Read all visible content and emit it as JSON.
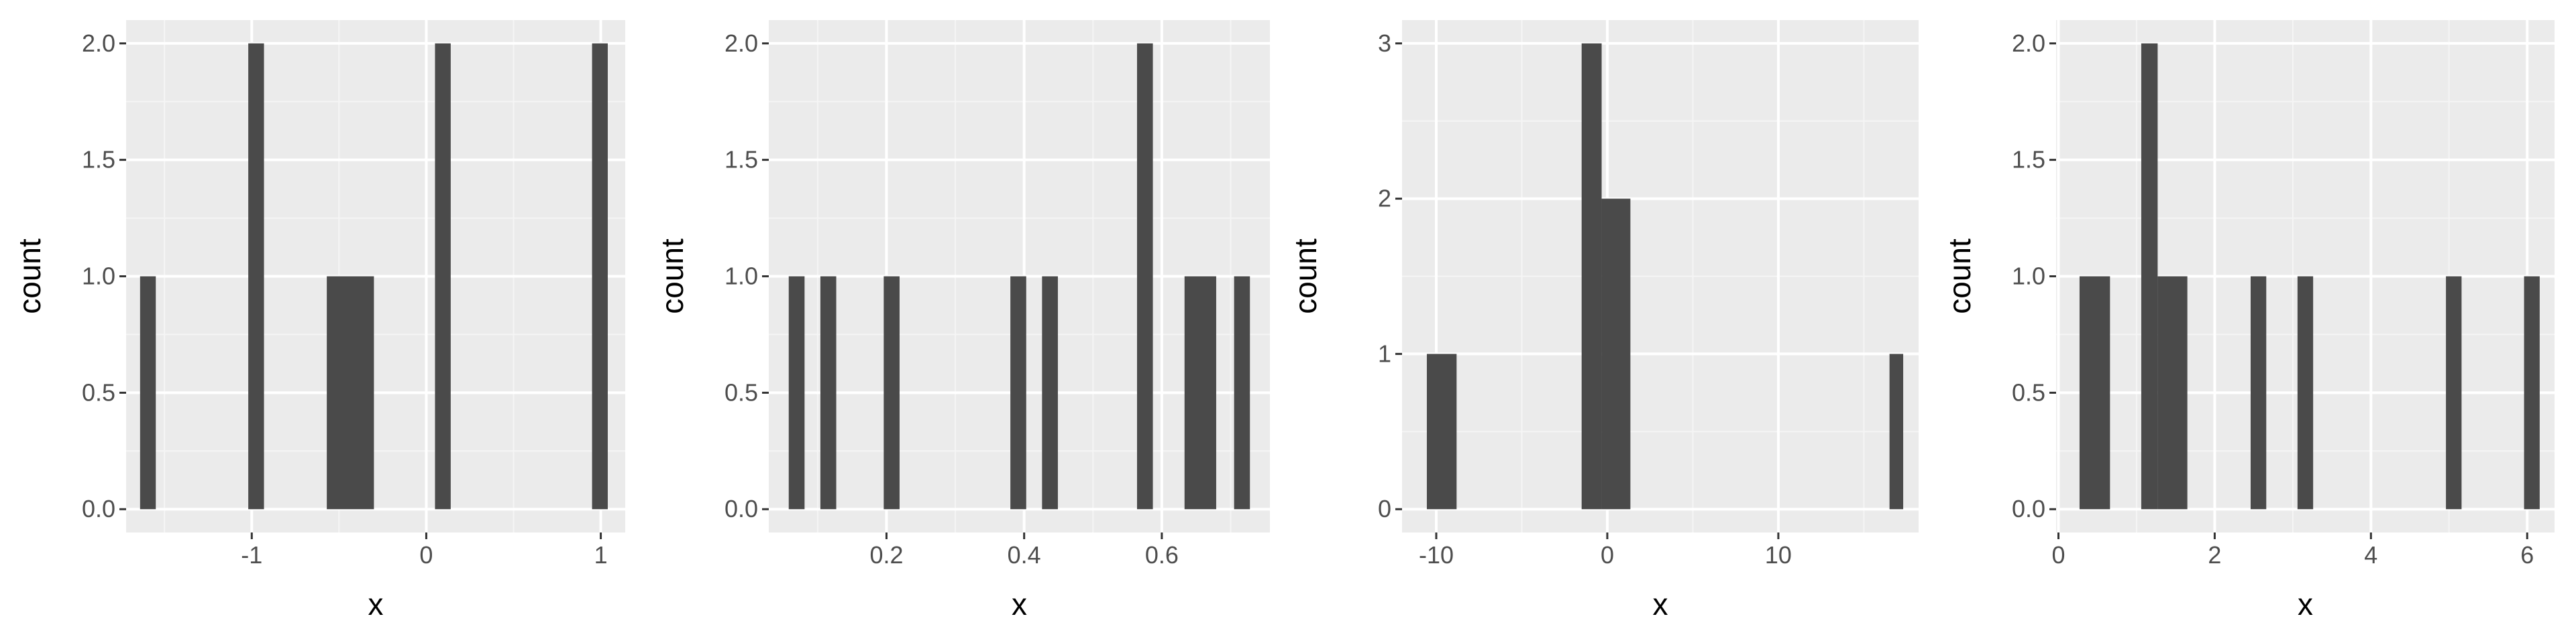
{
  "colors": {
    "panel_background": "#ebebeb",
    "grid_major": "#ffffff",
    "grid_minor": "#f5f5f5",
    "bar_fill": "#4a4a4a",
    "tick_color": "#333333",
    "tick_label_color": "#4d4d4d"
  },
  "chart_data": [
    {
      "type": "bar",
      "xlabel": "x",
      "ylabel": "count",
      "xlim": [
        -1.72,
        1.14
      ],
      "ylim": [
        -0.1,
        2.1
      ],
      "x_ticks": [
        -1,
        0,
        1
      ],
      "x_tick_labels": [
        "-1",
        "0",
        "1"
      ],
      "y_ticks": [
        0,
        0.5,
        1,
        1.5,
        2
      ],
      "y_tick_labels": [
        "0.0",
        "0.5",
        "1.0",
        "1.5",
        "2.0"
      ],
      "grid": true,
      "bins": [
        {
          "x0": -1.64,
          "x1": -1.55,
          "count": 1
        },
        {
          "x0": -1.02,
          "x1": -0.93,
          "count": 2
        },
        {
          "x0": -0.57,
          "x1": -0.3,
          "count": 1
        },
        {
          "x0": 0.05,
          "x1": 0.14,
          "count": 2
        },
        {
          "x0": 0.95,
          "x1": 1.04,
          "count": 2
        }
      ]
    },
    {
      "type": "bar",
      "xlabel": "x",
      "ylabel": "count",
      "xlim": [
        0.029,
        0.757
      ],
      "ylim": [
        -0.1,
        2.1
      ],
      "x_ticks": [
        0.2,
        0.4,
        0.6
      ],
      "x_tick_labels": [
        "0.2",
        "0.4",
        "0.6"
      ],
      "y_ticks": [
        0,
        0.5,
        1,
        1.5,
        2
      ],
      "y_tick_labels": [
        "0.0",
        "0.5",
        "1.0",
        "1.5",
        "2.0"
      ],
      "grid": true,
      "bins": [
        {
          "x0": 0.058,
          "x1": 0.081,
          "count": 1
        },
        {
          "x0": 0.104,
          "x1": 0.127,
          "count": 1
        },
        {
          "x0": 0.196,
          "x1": 0.219,
          "count": 1
        },
        {
          "x0": 0.38,
          "x1": 0.403,
          "count": 1
        },
        {
          "x0": 0.426,
          "x1": 0.449,
          "count": 1
        },
        {
          "x0": 0.564,
          "x1": 0.587,
          "count": 2
        },
        {
          "x0": 0.633,
          "x1": 0.679,
          "count": 1
        },
        {
          "x0": 0.705,
          "x1": 0.728,
          "count": 1
        }
      ]
    },
    {
      "type": "bar",
      "xlabel": "x",
      "ylabel": "count",
      "xlim": [
        -12.0,
        18.2
      ],
      "ylim": [
        -0.15,
        3.15
      ],
      "x_ticks": [
        -10,
        0,
        10
      ],
      "x_tick_labels": [
        "-10",
        "0",
        "10"
      ],
      "y_ticks": [
        0,
        1,
        2,
        3
      ],
      "y_tick_labels": [
        "0",
        "1",
        "2",
        "3"
      ],
      "grid": true,
      "bins": [
        {
          "x0": -10.55,
          "x1": -8.81,
          "count": 1
        },
        {
          "x0": -1.5,
          "x1": -0.33,
          "count": 3
        },
        {
          "x0": -0.33,
          "x1": 1.35,
          "count": 2
        },
        {
          "x0": 16.5,
          "x1": 17.3,
          "count": 1
        }
      ]
    },
    {
      "type": "bar",
      "xlabel": "x",
      "ylabel": "count",
      "xlim": [
        -0.03,
        6.35
      ],
      "ylim": [
        -0.1,
        2.1
      ],
      "x_ticks": [
        0,
        2,
        4,
        6
      ],
      "x_tick_labels": [
        "0",
        "2",
        "4",
        "6"
      ],
      "y_ticks": [
        0,
        0.5,
        1,
        1.5,
        2
      ],
      "y_tick_labels": [
        "0.0",
        "0.5",
        "1.0",
        "1.5",
        "2.0"
      ],
      "grid": true,
      "bins": [
        {
          "x0": 0.27,
          "x1": 0.66,
          "count": 1
        },
        {
          "x0": 1.06,
          "x1": 1.27,
          "count": 2
        },
        {
          "x0": 1.27,
          "x1": 1.65,
          "count": 1
        },
        {
          "x0": 2.46,
          "x1": 2.66,
          "count": 1
        },
        {
          "x0": 3.06,
          "x1": 3.26,
          "count": 1
        },
        {
          "x0": 4.96,
          "x1": 5.16,
          "count": 1
        },
        {
          "x0": 5.96,
          "x1": 6.16,
          "count": 1
        }
      ]
    }
  ]
}
